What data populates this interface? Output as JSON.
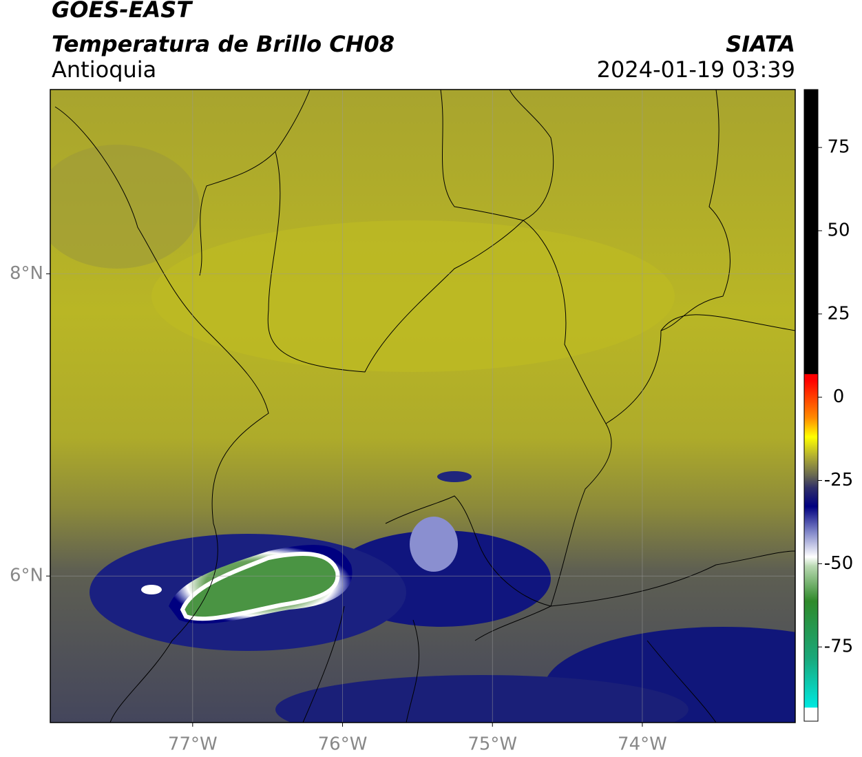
{
  "header": {
    "satellite": "GOES-EAST",
    "product": "Temperatura de Brillo CH08",
    "region": "Antioquia",
    "source": "SIATA",
    "datetime": "2024-01-19 03:39"
  },
  "map": {
    "xlim": [
      -77.95,
      -72.98
    ],
    "ylim": [
      5.03,
      9.22
    ],
    "xticks": [
      {
        "value": -77,
        "label": "77°W"
      },
      {
        "value": -76,
        "label": "76°W"
      },
      {
        "value": -75,
        "label": "75°W"
      },
      {
        "value": -74,
        "label": "74°W"
      }
    ],
    "yticks": [
      {
        "value": 8,
        "label": "8°N"
      },
      {
        "value": 6,
        "label": "6°N"
      }
    ],
    "grid": true
  },
  "colorbar": {
    "lim": [
      -97.3,
      92.4
    ],
    "ticks": [
      75,
      50,
      25,
      0,
      -25,
      -50,
      -75
    ]
  }
}
